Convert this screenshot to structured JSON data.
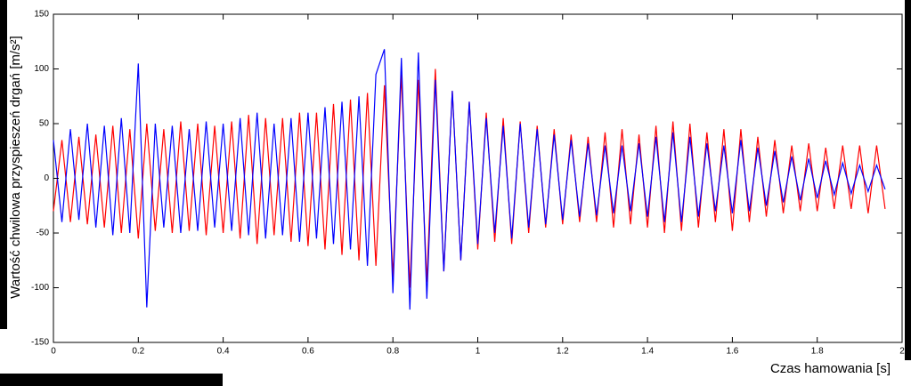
{
  "chart_data": {
    "type": "line",
    "y_label": "Wartość chwilowa przyspieszeń drgań [m/s²]",
    "x_label": "Czas hamowania [s]",
    "x": [
      0,
      0.02,
      0.04,
      0.06,
      0.08,
      0.1,
      0.12,
      0.14,
      0.16,
      0.18,
      0.2,
      0.22,
      0.24,
      0.26,
      0.28,
      0.3,
      0.32,
      0.34,
      0.36,
      0.38,
      0.4,
      0.42,
      0.44,
      0.46,
      0.48,
      0.5,
      0.52,
      0.54,
      0.56,
      0.58,
      0.6,
      0.62,
      0.64,
      0.66,
      0.68,
      0.7,
      0.72,
      0.74,
      0.76,
      0.78,
      0.8,
      0.82,
      0.84,
      0.86,
      0.88,
      0.9,
      0.92,
      0.94,
      0.96,
      0.98,
      1,
      1.02,
      1.04,
      1.06,
      1.08,
      1.1,
      1.12,
      1.14,
      1.16,
      1.18,
      1.2,
      1.22,
      1.24,
      1.26,
      1.28,
      1.3,
      1.32,
      1.34,
      1.36,
      1.38,
      1.4,
      1.42,
      1.44,
      1.46,
      1.48,
      1.5,
      1.52,
      1.54,
      1.56,
      1.58,
      1.6,
      1.62,
      1.64,
      1.66,
      1.68,
      1.7,
      1.72,
      1.74,
      1.76,
      1.78,
      1.8,
      1.82,
      1.84,
      1.86,
      1.88,
      1.9,
      1.92,
      1.94,
      1.96
    ],
    "series": [
      {
        "color": "#ff0000",
        "values": [
          -30,
          35,
          -40,
          38,
          -42,
          40,
          -45,
          48,
          -50,
          45,
          -55,
          50,
          -48,
          45,
          -50,
          52,
          -48,
          50,
          -52,
          48,
          -50,
          52,
          -55,
          58,
          -60,
          55,
          -52,
          55,
          -58,
          60,
          -62,
          60,
          -65,
          68,
          -70,
          72,
          -75,
          78,
          -80,
          85,
          -90,
          95,
          -100,
          90,
          -95,
          100,
          -85,
          80,
          -75,
          70,
          -65,
          60,
          -58,
          55,
          -60,
          52,
          -50,
          48,
          -45,
          45,
          -42,
          40,
          -40,
          38,
          -40,
          42,
          -45,
          45,
          -42,
          40,
          -45,
          48,
          -50,
          52,
          -48,
          50,
          -45,
          42,
          -40,
          45,
          -48,
          45,
          -40,
          38,
          -35,
          35,
          -32,
          30,
          -30,
          32,
          -30,
          28,
          -28,
          30,
          -28,
          30,
          -32,
          30,
          -28
        ]
      },
      {
        "color": "#0000ff",
        "values": [
          35,
          -40,
          45,
          -38,
          50,
          -45,
          48,
          -52,
          55,
          -50,
          105,
          -118,
          50,
          -45,
          48,
          -50,
          45,
          -48,
          52,
          -45,
          50,
          -48,
          55,
          -52,
          60,
          -55,
          50,
          -52,
          55,
          -58,
          60,
          -55,
          65,
          -60,
          70,
          -65,
          75,
          -80,
          95,
          118,
          -105,
          110,
          -120,
          115,
          -110,
          90,
          -85,
          80,
          -75,
          70,
          -60,
          55,
          -50,
          48,
          -55,
          50,
          -45,
          45,
          -42,
          40,
          -38,
          35,
          -35,
          32,
          -34,
          30,
          -32,
          30,
          -30,
          32,
          -35,
          38,
          -40,
          42,
          -40,
          38,
          -35,
          32,
          -30,
          30,
          -32,
          35,
          -30,
          28,
          -25,
          25,
          -22,
          20,
          -20,
          18,
          -18,
          16,
          -15,
          14,
          -14,
          12,
          -12,
          12,
          -10
        ]
      }
    ],
    "xlim": [
      0,
      2
    ],
    "xticks": [
      0,
      0.2,
      0.4,
      0.6,
      0.8,
      1,
      1.2,
      1.4,
      1.6,
      1.8,
      2
    ],
    "ylim": [
      -150,
      150
    ],
    "yticks": [
      -150,
      -100,
      -50,
      0,
      50,
      100,
      150
    ]
  }
}
